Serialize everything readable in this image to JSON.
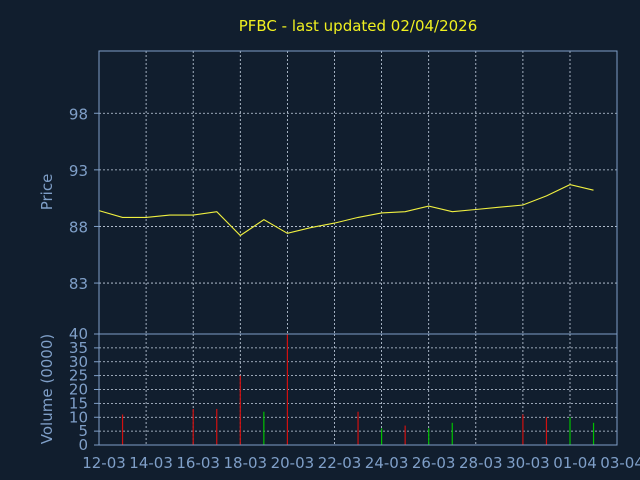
{
  "title": "PFBC - last updated 02/04/2026",
  "colors": {
    "background": "#111e2e",
    "frame": "#7f9fc8",
    "grid": "#c8d4e4",
    "title": "#f0f020",
    "price_line": "#f0f040",
    "up_volume": "#00c000",
    "down_volume": "#d01010",
    "axis_text": "#7f9fc8"
  },
  "chart_data": [
    {
      "type": "line",
      "name": "price-panel",
      "ylabel": "Price",
      "ylim": [
        78.5,
        103.5
      ],
      "yticks": [
        83,
        88,
        93,
        98
      ],
      "grid": true,
      "series": [
        {
          "values": [
            89.4,
            88.8,
            88.8,
            89.0,
            89.0,
            89.3,
            87.2,
            88.6,
            87.4,
            87.9,
            88.3,
            88.8,
            89.2,
            89.3,
            89.8,
            89.3,
            89.5,
            89.7,
            89.9,
            90.7,
            91.7,
            91.2
          ]
        }
      ]
    },
    {
      "type": "bar",
      "name": "volume-panel",
      "ylabel": "Volume (0000)",
      "ylim": [
        0,
        40
      ],
      "yticks": [
        0,
        5,
        10,
        15,
        20,
        25,
        30,
        35,
        40
      ],
      "grid": true,
      "bars": [
        {
          "x": 1,
          "value": 11,
          "dir": "down"
        },
        {
          "x": 4,
          "value": 13,
          "dir": "down"
        },
        {
          "x": 5,
          "value": 13,
          "dir": "down"
        },
        {
          "x": 6,
          "value": 25,
          "dir": "down"
        },
        {
          "x": 7,
          "value": 12,
          "dir": "up"
        },
        {
          "x": 8,
          "value": 40,
          "dir": "down"
        },
        {
          "x": 11,
          "value": 12,
          "dir": "down"
        },
        {
          "x": 12,
          "value": 6,
          "dir": "up"
        },
        {
          "x": 13,
          "value": 7,
          "dir": "down"
        },
        {
          "x": 14,
          "value": 6,
          "dir": "up"
        },
        {
          "x": 15,
          "value": 8,
          "dir": "up"
        },
        {
          "x": 18,
          "value": 11,
          "dir": "down"
        },
        {
          "x": 19,
          "value": 10,
          "dir": "down"
        },
        {
          "x": 20,
          "value": 10,
          "dir": "up"
        },
        {
          "x": 21,
          "value": 8,
          "dir": "up"
        }
      ]
    }
  ],
  "x_tick_labels": [
    "12-03",
    "14-03",
    "16-03",
    "18-03",
    "20-03",
    "22-03",
    "24-03",
    "26-03",
    "28-03",
    "30-03",
    "01-04",
    "03-04"
  ]
}
